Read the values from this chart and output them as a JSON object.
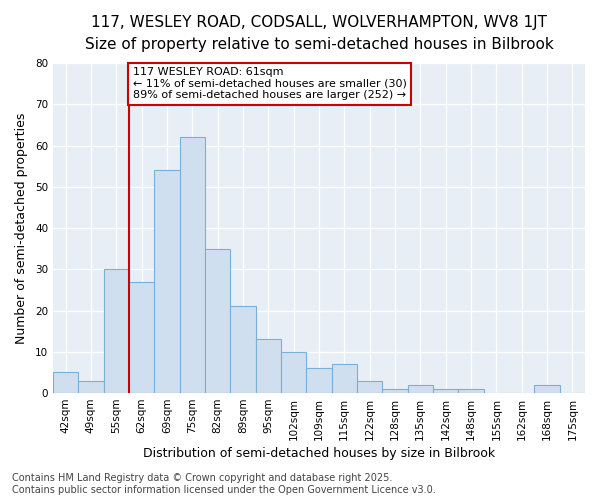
{
  "title1": "117, WESLEY ROAD, CODSALL, WOLVERHAMPTON, WV8 1JT",
  "title2": "Size of property relative to semi-detached houses in Bilbrook",
  "xlabel": "Distribution of semi-detached houses by size in Bilbrook",
  "ylabel": "Number of semi-detached properties",
  "categories": [
    "42sqm",
    "49sqm",
    "55sqm",
    "62sqm",
    "69sqm",
    "75sqm",
    "82sqm",
    "89sqm",
    "95sqm",
    "102sqm",
    "109sqm",
    "115sqm",
    "122sqm",
    "128sqm",
    "135sqm",
    "142sqm",
    "148sqm",
    "155sqm",
    "162sqm",
    "168sqm",
    "175sqm"
  ],
  "values": [
    5,
    3,
    30,
    27,
    54,
    62,
    35,
    21,
    13,
    10,
    6,
    7,
    3,
    1,
    2,
    1,
    1,
    0,
    0,
    2,
    0
  ],
  "bar_color": "#cfdff0",
  "bar_edge_color": "#7ab0d8",
  "vline_index": 3,
  "vline_color": "#cc0000",
  "annotation_title": "117 WESLEY ROAD: 61sqm",
  "annotation_line1": "← 11% of semi-detached houses are smaller (30)",
  "annotation_line2": "89% of semi-detached houses are larger (252) →",
  "annotation_box_color": "#cc0000",
  "footer": "Contains HM Land Registry data © Crown copyright and database right 2025.\nContains public sector information licensed under the Open Government Licence v3.0.",
  "ylim": [
    0,
    80
  ],
  "yticks": [
    0,
    10,
    20,
    30,
    40,
    50,
    60,
    70,
    80
  ],
  "plot_bg_color": "#e8eef6",
  "fig_bg_color": "#ffffff",
  "grid_color": "#ffffff",
  "title1_fontsize": 11,
  "title2_fontsize": 9.5,
  "axis_label_fontsize": 9,
  "tick_fontsize": 7.5,
  "footer_fontsize": 7,
  "ann_fontsize": 8
}
